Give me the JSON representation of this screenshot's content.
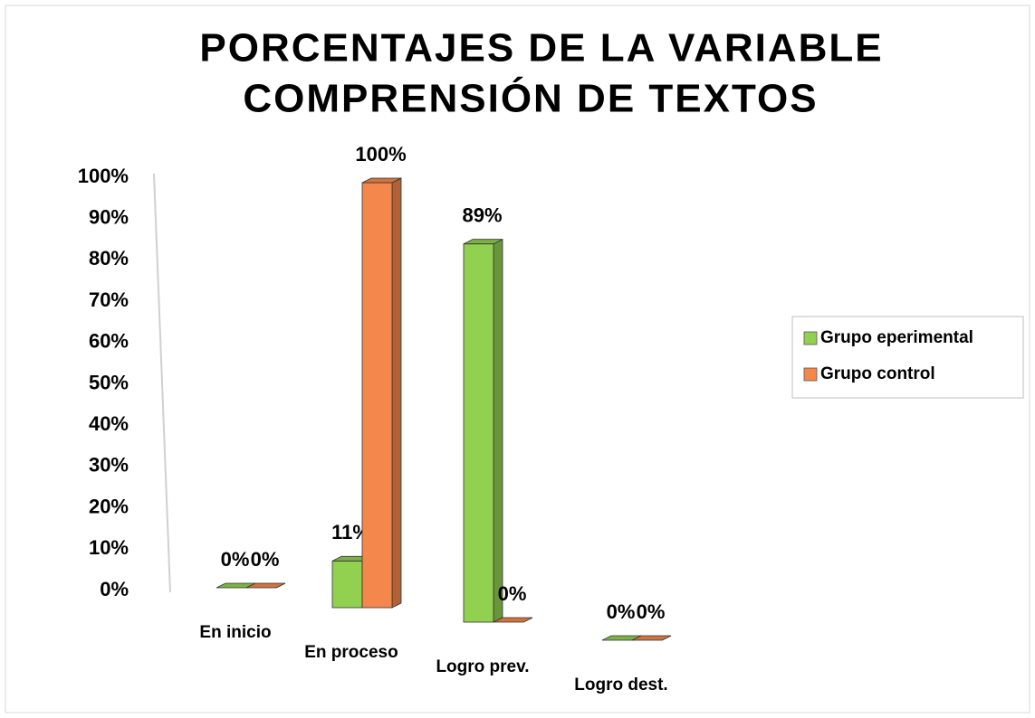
{
  "chart_data": {
    "type": "bar3d",
    "title": [
      "PORCENTAJES DE LA VARIABLE",
      "COMPRENSIÓN DE TEXTOS"
    ],
    "categories": [
      "En inicio",
      "En proceso",
      "Logro prev.",
      "Logro dest."
    ],
    "series": [
      {
        "name": "Grupo eperimental",
        "color": "#92d050",
        "values": [
          0,
          11,
          89,
          0
        ],
        "value_labels": [
          "0%",
          "11%",
          "89%",
          "0%"
        ]
      },
      {
        "name": "Grupo control",
        "color": "#f4874b",
        "values": [
          0,
          100,
          0,
          0
        ],
        "value_labels": [
          "0%",
          "100%",
          "0%",
          "0%"
        ]
      }
    ],
    "ylim": [
      0,
      100
    ],
    "yticks": [
      {
        "value": 0,
        "label": "0%"
      },
      {
        "value": 10,
        "label": "10%"
      },
      {
        "value": 20,
        "label": "20%"
      },
      {
        "value": 30,
        "label": "30%"
      },
      {
        "value": 40,
        "label": "40%"
      },
      {
        "value": 50,
        "label": "50%"
      },
      {
        "value": 60,
        "label": "60%"
      },
      {
        "value": 70,
        "label": "70%"
      },
      {
        "value": 80,
        "label": "80%"
      },
      {
        "value": 90,
        "label": "90%"
      },
      {
        "value": 100,
        "label": "100%"
      }
    ],
    "legend": "right"
  }
}
